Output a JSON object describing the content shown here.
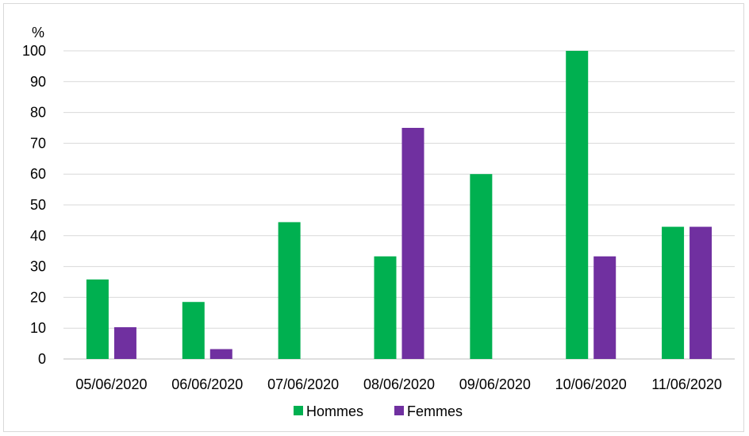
{
  "chart_data": {
    "type": "bar",
    "ylabel": "%",
    "ylim": [
      0,
      100
    ],
    "yticks": [
      0,
      10,
      20,
      30,
      40,
      50,
      60,
      70,
      80,
      90,
      100
    ],
    "grid": true,
    "legend_position": "bottom",
    "categories": [
      "05/06/2020",
      "06/06/2020",
      "07/06/2020",
      "08/06/2020",
      "09/06/2020",
      "10/06/2020",
      "11/06/2020"
    ],
    "series": [
      {
        "name": "Hommes",
        "color": "#00b050",
        "values": [
          25.8,
          18.5,
          44.4,
          33.3,
          60,
          100,
          42.9
        ]
      },
      {
        "name": "Femmes",
        "color": "#7030a0",
        "values": [
          10.3,
          3.2,
          0,
          75,
          0,
          33.3,
          42.9
        ]
      }
    ]
  }
}
